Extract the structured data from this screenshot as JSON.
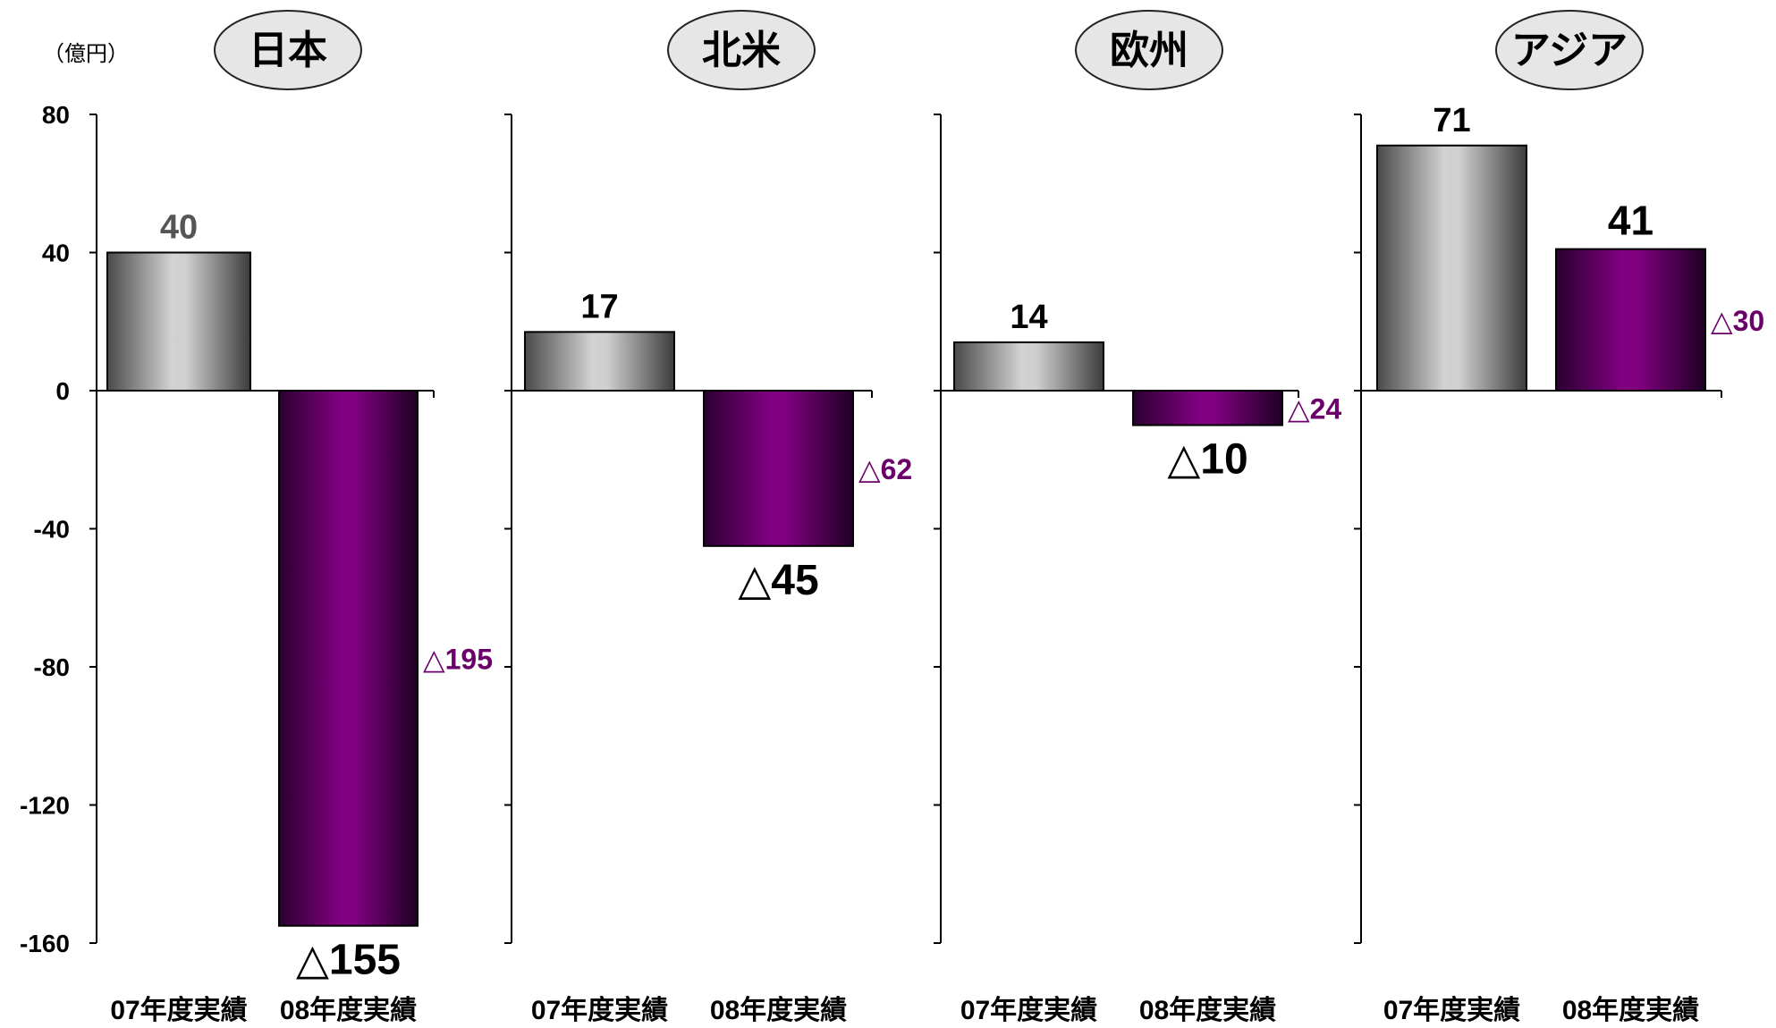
{
  "chart_data": {
    "type": "bar",
    "unit_label": "（億円）",
    "ylim": [
      -160,
      80
    ],
    "yticks": [
      80,
      40,
      0,
      -40,
      -80,
      -120,
      -160
    ],
    "ytick_labels": [
      "80",
      "40",
      "0",
      "-40",
      "-80",
      "-120",
      "-160"
    ],
    "categories": [
      "07年度実績",
      "08年度実績"
    ],
    "colors": {
      "fy07": "#a6a6a6",
      "fy08": "#7f007f",
      "diff_text": "#6b006b",
      "value_text": "#000000",
      "value_text_muted": "#555555"
    },
    "panels": [
      {
        "region": "日本",
        "values": [
          40,
          -155
        ],
        "value_labels": [
          "40",
          "△155"
        ],
        "change_label": "△195"
      },
      {
        "region": "北米",
        "values": [
          17,
          -45
        ],
        "value_labels": [
          "17",
          "△45"
        ],
        "change_label": "△62"
      },
      {
        "region": "欧州",
        "values": [
          14,
          -10
        ],
        "value_labels": [
          "14",
          "△10"
        ],
        "change_label": "△24"
      },
      {
        "region": "アジア",
        "values": [
          71,
          41
        ],
        "value_labels": [
          "71",
          "41"
        ],
        "change_label": "△30"
      }
    ]
  }
}
